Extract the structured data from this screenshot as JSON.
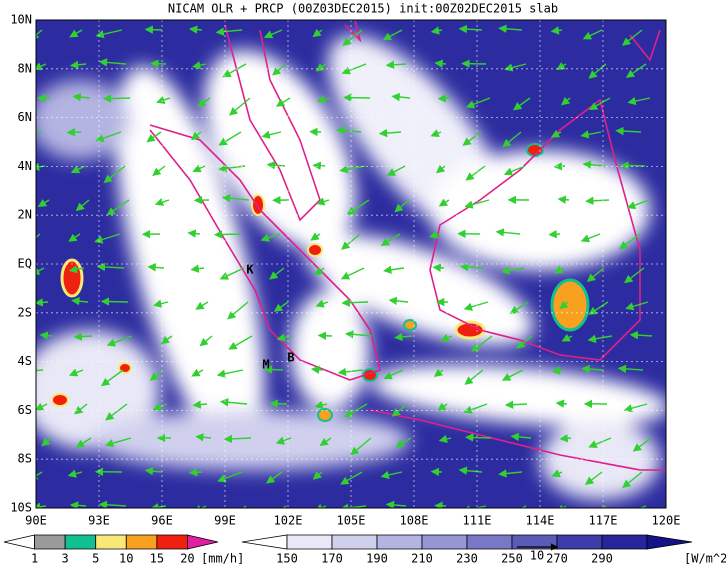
{
  "title": "NICAM OLR + PRCP (00Z03DEC2015) init:00Z02DEC2015 slab",
  "map": {
    "lat_labels": [
      "10N",
      "8N",
      "6N",
      "4N",
      "2N",
      "EQ",
      "2S",
      "4S",
      "6S",
      "8S",
      "10S"
    ],
    "lon_labels": [
      "90E",
      "93E",
      "96E",
      "99E",
      "102E",
      "105E",
      "108E",
      "111E",
      "114E",
      "117E",
      "120E"
    ],
    "place_labels": [
      "K",
      "M",
      "B"
    ]
  },
  "precip_colorbar": {
    "labels": [
      "1",
      "3",
      "5",
      "10",
      "15",
      "20"
    ],
    "unit": "[mm/h]",
    "colors": [
      "#ffffff",
      "#9a9a9a",
      "#10c090",
      "#f8e878",
      "#f8a020",
      "#f02010",
      "#e020a0"
    ]
  },
  "olr_colorbar": {
    "labels": [
      "150",
      "170",
      "190",
      "210",
      "230",
      "250",
      "270",
      "290"
    ],
    "unit": "[W/m^2]",
    "colors": [
      "#ffffff",
      "#e8e8f6",
      "#d0d0ee",
      "#b4b4e2",
      "#9696d4",
      "#7878c6",
      "#5a5ab8",
      "#3c3caa",
      "#26269a",
      "#141488"
    ]
  },
  "vector_scale": {
    "label": "10"
  }
}
